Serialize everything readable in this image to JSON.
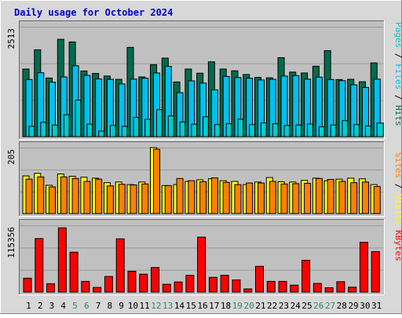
{
  "colors": {
    "title": "#0000cc",
    "hits": "#006b4d",
    "files": "#00c0f0",
    "pages": "#00cccc",
    "visits": "#ffff00",
    "sites": "#ff8000",
    "kbytes": "#ff0000",
    "weekend_label": "#338a6a",
    "weekday_label": "#000000",
    "plot_bg": "#c0c0c0",
    "frame": "#d8d8d8"
  },
  "chart_data": [
    {
      "type": "bar",
      "title": "Daily usage for October 2024",
      "categories": [
        "1",
        "2",
        "3",
        "4",
        "5",
        "6",
        "7",
        "8",
        "9",
        "10",
        "11",
        "12",
        "13",
        "14",
        "15",
        "16",
        "17",
        "18",
        "19",
        "20",
        "21",
        "22",
        "23",
        "24",
        "25",
        "26",
        "27",
        "28",
        "29",
        "30",
        "31"
      ],
      "weekend_days": [
        "5",
        "6",
        "12",
        "13",
        "19",
        "20",
        "26",
        "27"
      ],
      "ymax_label": "2513",
      "ylim": [
        0,
        2513
      ],
      "grid": true,
      "legend": "right",
      "series": [
        {
          "name": "Hits",
          "color": "hits",
          "values": [
            1545,
            1985,
            1340,
            2225,
            2165,
            1500,
            1445,
            1385,
            1310,
            2040,
            1365,
            1645,
            1795,
            1250,
            1545,
            1450,
            1710,
            1545,
            1505,
            1420,
            1355,
            1345,
            1805,
            1475,
            1455,
            1610,
            1965,
            1305,
            1310,
            1255,
            1685
          ]
        },
        {
          "name": "Files",
          "color": "files",
          "values": [
            1305,
            1460,
            1245,
            1365,
            1620,
            1400,
            1320,
            1310,
            1205,
            1315,
            1335,
            1455,
            1605,
            1005,
            1275,
            1225,
            1070,
            1375,
            1350,
            1335,
            1295,
            1310,
            1385,
            1395,
            1315,
            1360,
            1305,
            1280,
            1185,
            1125,
            1315
          ]
        },
        {
          "name": "Pages",
          "color": "pages",
          "values": [
            235,
            325,
            265,
            500,
            835,
            285,
            125,
            255,
            235,
            440,
            395,
            615,
            475,
            335,
            285,
            455,
            275,
            295,
            400,
            275,
            315,
            295,
            255,
            265,
            290,
            225,
            265,
            365,
            275,
            245,
            310
          ]
        }
      ]
    },
    {
      "type": "bar",
      "ymax_label": "205",
      "ylim": [
        0,
        205
      ],
      "grid": true,
      "legend": "right",
      "series": [
        {
          "name": "Visits",
          "color": "visits",
          "values": [
            117,
            125,
            88,
            123,
            116,
            113,
            110,
            96,
            98,
            90,
            98,
            205,
            87,
            90,
            100,
            105,
            108,
            102,
            100,
            90,
            98,
            112,
            99,
            98,
            103,
            110,
            102,
            107,
            110,
            108,
            90
          ]
        },
        {
          "name": "Sites",
          "color": "sites",
          "values": [
            107,
            114,
            83,
            114,
            109,
            100,
            107,
            86,
            91,
            89,
            92,
            200,
            87,
            109,
            102,
            99,
            111,
            97,
            90,
            95,
            95,
            100,
            92,
            93,
            94,
            109,
            106,
            100,
            96,
            98,
            84
          ]
        }
      ]
    },
    {
      "type": "bar",
      "ymax_label": "115356",
      "ylim": [
        0,
        115356
      ],
      "grid": true,
      "legend": "right",
      "series": [
        {
          "name": "KBytes",
          "color": "kbytes",
          "values": [
            24000,
            92500,
            14500,
            111000,
            69000,
            18500,
            8000,
            27000,
            92000,
            36000,
            31000,
            42500,
            13500,
            17500,
            29000,
            95000,
            25500,
            29000,
            21000,
            5500,
            44500,
            18500,
            18500,
            12000,
            55000,
            15000,
            7500,
            18000,
            8500,
            86000,
            70000
          ]
        }
      ]
    }
  ]
}
